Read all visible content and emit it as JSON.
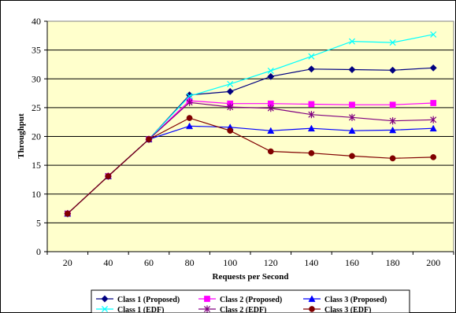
{
  "chart_data": {
    "type": "line",
    "title": "",
    "xlabel": "Requests per Second",
    "ylabel": "Throughput",
    "x": [
      20,
      40,
      60,
      80,
      100,
      120,
      140,
      160,
      180,
      200
    ],
    "xlim": [
      10,
      210
    ],
    "ylim": [
      0,
      40
    ],
    "yticks": [
      0,
      5,
      10,
      15,
      20,
      25,
      30,
      35,
      40
    ],
    "grid": "horizontal",
    "legend_position": "bottom",
    "plot_background": "#ffffcc",
    "series": [
      {
        "name": "Class 1 (Proposed)",
        "color": "#000080",
        "marker": "diamond",
        "values": [
          6.6,
          13.1,
          19.5,
          27.2,
          27.8,
          30.4,
          31.7,
          31.6,
          31.5,
          31.9
        ]
      },
      {
        "name": "Class 2 (Proposed)",
        "color": "#ff00ff",
        "marker": "square",
        "values": [
          6.6,
          13.1,
          19.5,
          26.2,
          25.7,
          25.7,
          25.6,
          25.5,
          25.5,
          25.8
        ]
      },
      {
        "name": "Class 3 (Proposed)",
        "color": "#0000ff",
        "marker": "triangle",
        "values": [
          6.6,
          13.1,
          19.5,
          21.8,
          21.6,
          21.0,
          21.4,
          21.0,
          21.1,
          21.4
        ]
      },
      {
        "name": "Class 1 (EDF)",
        "color": "#00ffff",
        "marker": "x",
        "values": [
          6.6,
          13.1,
          19.5,
          27.0,
          29.1,
          31.4,
          33.9,
          36.5,
          36.3,
          37.7
        ]
      },
      {
        "name": "Class 2 (EDF)",
        "color": "#800080",
        "marker": "star",
        "values": [
          6.6,
          13.1,
          19.5,
          25.9,
          25.1,
          24.9,
          23.8,
          23.3,
          22.7,
          22.9
        ]
      },
      {
        "name": "Class 3 (EDF)",
        "color": "#800000",
        "marker": "circle",
        "values": [
          6.6,
          13.1,
          19.5,
          23.2,
          21.0,
          17.4,
          17.1,
          16.6,
          16.2,
          16.4
        ]
      }
    ]
  }
}
